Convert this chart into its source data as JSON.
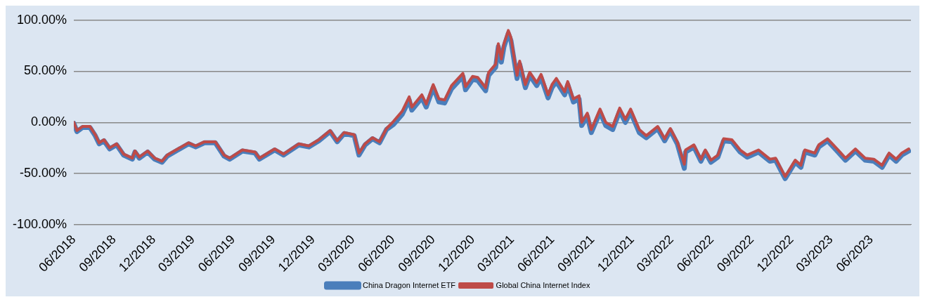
{
  "chart_data": {
    "type": "line",
    "x": [
      "2018-06-01",
      "2018-06-08",
      "2018-06-21",
      "2018-07-08",
      "2018-07-20",
      "2018-07-29",
      "2018-08-09",
      "2018-08-22",
      "2018-09-07",
      "2018-09-23",
      "2018-10-13",
      "2018-10-19",
      "2018-10-29",
      "2018-11-17",
      "2018-12-03",
      "2018-12-20",
      "2019-01-01",
      "2019-01-21",
      "2019-02-19",
      "2019-03-07",
      "2019-03-27",
      "2019-04-21",
      "2019-05-11",
      "2019-05-24",
      "2019-06-22",
      "2019-07-21",
      "2019-07-31",
      "2019-09-04",
      "2019-09-24",
      "2019-10-29",
      "2019-11-21",
      "2019-12-14",
      "2020-01-09",
      "2020-01-25",
      "2020-02-10",
      "2020-03-04",
      "2020-03-15",
      "2020-03-29",
      "2020-04-15",
      "2020-05-01",
      "2020-05-17",
      "2020-06-02",
      "2020-06-22",
      "2020-07-08",
      "2020-07-14",
      "2020-08-06",
      "2020-08-16",
      "2020-09-01",
      "2020-09-14",
      "2020-09-27",
      "2020-10-13",
      "2020-11-08",
      "2020-11-14",
      "2020-11-30",
      "2020-12-12",
      "2020-12-30",
      "2021-01-06",
      "2021-01-22",
      "2021-01-28",
      "2021-02-04",
      "2021-02-10",
      "2021-02-20",
      "2021-02-26",
      "2021-03-12",
      "2021-03-18",
      "2021-03-31",
      "2021-04-10",
      "2021-04-26",
      "2021-05-06",
      "2021-05-22",
      "2021-05-31",
      "2021-06-10",
      "2021-06-29",
      "2021-07-06",
      "2021-07-19",
      "2021-08-01",
      "2021-08-07",
      "2021-08-20",
      "2021-08-29",
      "2021-09-18",
      "2021-10-01",
      "2021-10-17",
      "2021-11-02",
      "2021-11-15",
      "2021-11-27",
      "2021-12-17",
      "2022-01-02",
      "2022-01-28",
      "2022-02-13",
      "2022-02-26",
      "2022-03-14",
      "2022-03-30",
      "2022-04-02",
      "2022-04-21",
      "2022-05-07",
      "2022-05-17",
      "2022-05-30",
      "2022-06-15",
      "2022-06-28",
      "2022-07-17",
      "2022-08-05",
      "2022-08-21",
      "2022-09-16",
      "2022-10-12",
      "2022-10-25",
      "2022-11-16",
      "2022-12-09",
      "2022-12-22",
      "2022-12-31",
      "2023-01-23",
      "2023-02-01",
      "2023-02-21",
      "2023-03-15",
      "2023-04-03",
      "2023-04-26",
      "2023-05-18",
      "2023-06-07",
      "2023-06-26",
      "2023-07-12",
      "2023-07-28",
      "2023-08-10",
      "2023-08-26"
    ],
    "series": [
      {
        "name": "China Dragon Internet ETF",
        "color": "#4a7ebb",
        "values": [
          -1,
          -9,
          -5,
          -5,
          -13,
          -21,
          -18,
          -26,
          -22,
          -32,
          -36,
          -29,
          -35,
          -29,
          -36,
          -39,
          -33,
          -28,
          -21,
          -24,
          -20,
          -20,
          -33,
          -36,
          -28,
          -30,
          -36,
          -27,
          -32,
          -22,
          -24,
          -18,
          -9,
          -19,
          -11,
          -13,
          -32,
          -22,
          -16,
          -20,
          -7,
          -2,
          8,
          22,
          12,
          24,
          15,
          34,
          20,
          19,
          33,
          45,
          32,
          42,
          41,
          31,
          46,
          54,
          74,
          59,
          74,
          87,
          80,
          43,
          57,
          34,
          46,
          36,
          44,
          24,
          34,
          40,
          27,
          37,
          20,
          23,
          -3,
          6,
          -10,
          10,
          -3,
          -7,
          11,
          0,
          10,
          -10,
          -15,
          -6,
          -18,
          -8,
          -21,
          -45,
          -29,
          -24,
          -38,
          -29,
          -39,
          -34,
          -18,
          -19,
          -29,
          -34,
          -29,
          -38,
          -37,
          -55,
          -39,
          -44,
          -29,
          -32,
          -24,
          -18,
          -28,
          -37,
          -28,
          -37,
          -38,
          -44,
          -32,
          -38,
          -32,
          -28
        ]
      },
      {
        "name": "Global China Internet Index",
        "color": "#be4b48",
        "values": [
          0,
          -8,
          -4,
          -4,
          -12,
          -20,
          -17,
          -25,
          -21,
          -31,
          -35,
          -28,
          -34,
          -28,
          -35,
          -38,
          -32,
          -27,
          -20,
          -23,
          -19,
          -19,
          -32,
          -35,
          -27,
          -29,
          -35,
          -26,
          -31,
          -21,
          -23,
          -17,
          -8,
          -18,
          -10,
          -12,
          -30,
          -21,
          -15,
          -19,
          -6,
          1,
          11,
          25,
          15,
          27,
          18,
          37,
          23,
          22,
          36,
          48,
          35,
          45,
          44,
          34,
          49,
          57,
          77,
          62,
          77,
          90,
          83,
          46,
          60,
          37,
          49,
          39,
          47,
          27,
          37,
          43,
          30,
          40,
          23,
          26,
          0,
          9,
          -7,
          13,
          0,
          -4,
          14,
          3,
          13,
          -7,
          -13,
          -4,
          -16,
          -6,
          -19,
          -41,
          -27,
          -22,
          -36,
          -27,
          -37,
          -32,
          -16,
          -17,
          -27,
          -32,
          -27,
          -36,
          -35,
          -53,
          -37,
          -42,
          -27,
          -30,
          -22,
          -16,
          -26,
          -35,
          -26,
          -35,
          -36,
          -42,
          -30,
          -36,
          -30,
          -26
        ]
      }
    ],
    "xlim": [
      "2018-06-01",
      "2023-08-31"
    ],
    "xticks": [
      {
        "value": "2018-06",
        "label": "06/2018"
      },
      {
        "value": "2018-09",
        "label": "09/2018"
      },
      {
        "value": "2018-12",
        "label": "12/2018"
      },
      {
        "value": "2019-03",
        "label": "03/2019"
      },
      {
        "value": "2019-06",
        "label": "06/2019"
      },
      {
        "value": "2019-09",
        "label": "09/2019"
      },
      {
        "value": "2019-12",
        "label": "12/2019"
      },
      {
        "value": "2020-03",
        "label": "03/2020"
      },
      {
        "value": "2020-06",
        "label": "06/2020"
      },
      {
        "value": "2020-09",
        "label": "09/2020"
      },
      {
        "value": "2020-12",
        "label": "12/2020"
      },
      {
        "value": "2021-03",
        "label": "03/2021"
      },
      {
        "value": "2021-06",
        "label": "06/2021"
      },
      {
        "value": "2021-09",
        "label": "09/2021"
      },
      {
        "value": "2021-12",
        "label": "12/2021"
      },
      {
        "value": "2022-03",
        "label": "03/2022"
      },
      {
        "value": "2022-06",
        "label": "06/2022"
      },
      {
        "value": "2022-09",
        "label": "09/2022"
      },
      {
        "value": "2022-12",
        "label": "12/2022"
      },
      {
        "value": "2023-03",
        "label": "03/2023"
      },
      {
        "value": "2023-06",
        "label": "06/2023"
      }
    ],
    "ylim": [
      -100,
      100
    ],
    "yticks": [
      {
        "value": -100,
        "label": "-100.00%"
      },
      {
        "value": -50,
        "label": "-50.00%"
      },
      {
        "value": 0,
        "label": "0.00%"
      },
      {
        "value": 50,
        "label": "50.00%"
      },
      {
        "value": 100,
        "label": "100.00%"
      }
    ],
    "grid": "y",
    "legend": "bottom",
    "marker": "none",
    "line_style": "solid"
  }
}
